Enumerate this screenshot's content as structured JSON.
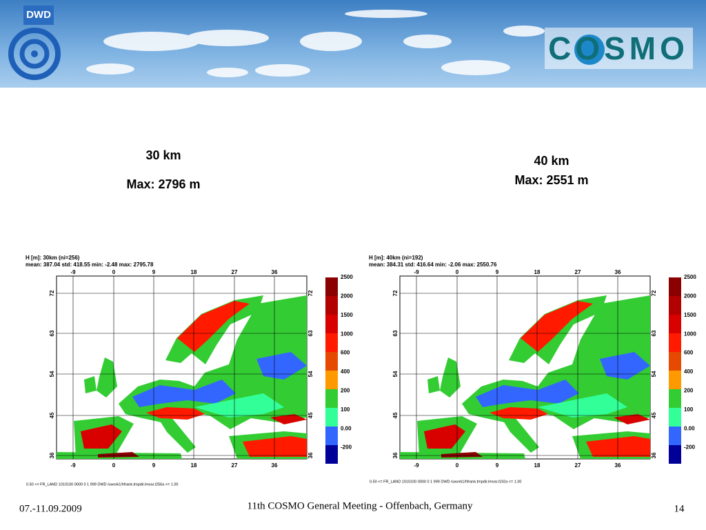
{
  "header": {
    "dwd_logo": "DWD",
    "cosmo_logo": "COSMO"
  },
  "panels": [
    {
      "title": "30 km",
      "max": "Max: 2796 m",
      "map_title": "H [m]: 30km (ni=256)",
      "stats": "mean:  387.04   std:  418.55   min:   -2.48   max:  2795.78",
      "footnote": "0.50  <=  FR_LAND 1010100 0000 0 1 999 DWD /uwork1/hfrank.tmpdir.lmvar.l256a  <=   1.00"
    },
    {
      "title": "40 km",
      "max": "Max: 2551 m",
      "map_title": "H [m]: 40km (ni=192)",
      "stats": "mean:  384.31   std:  416.64   min:   -2.06   max:  2550.76",
      "footnote": "0.50  <=  FR_LAND 1010100 0000 0 1 999 DWD /uwork1/hfrank.tmpdir.lmvar.l192a  <=   1.00"
    }
  ],
  "map_axes": {
    "lon": [
      "-9",
      "0",
      "9",
      "18",
      "27",
      "36"
    ],
    "lat": [
      "72",
      "63",
      "54",
      "45",
      "36"
    ]
  },
  "colorbar": {
    "labels": [
      "2500",
      "2000",
      "1500",
      "1000",
      "600",
      "400",
      "200",
      "100",
      "0.00",
      "-200"
    ],
    "colors": [
      "#8b0000",
      "#b30000",
      "#d90000",
      "#ff1a00",
      "#e64a00",
      "#ff9900",
      "#33cc33",
      "#33ff99",
      "#3366ff",
      "#000099"
    ]
  },
  "footer": {
    "date": "07.-11.09.2009",
    "event": "11th COSMO General Meeting - Offenbach, Germany",
    "page": "14"
  }
}
